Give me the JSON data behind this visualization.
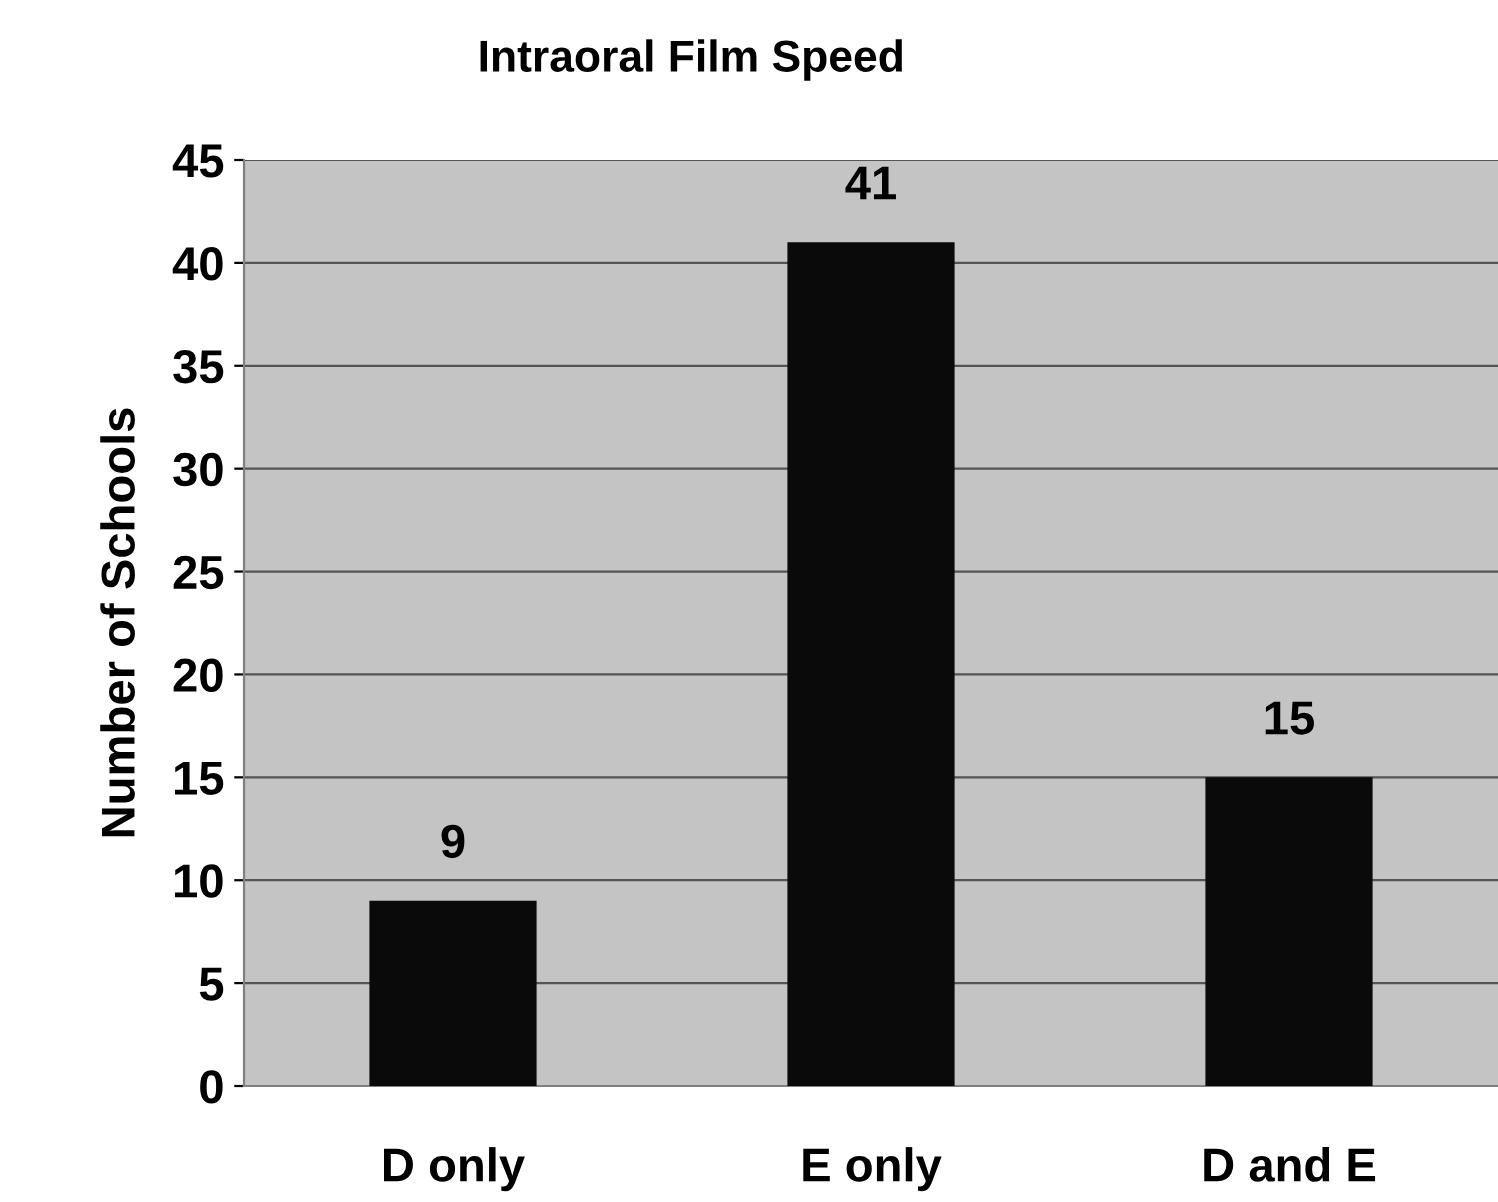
{
  "chart_data": {
    "type": "bar",
    "title": "Intraoral Film Speed",
    "ylabel": "Number of Schools",
    "categories": [
      "D only",
      "E only",
      "D and E"
    ],
    "values": [
      9,
      41,
      15
    ],
    "color": "#0a0a0a",
    "ylim": [
      0,
      45
    ],
    "yticks": [
      0,
      5,
      10,
      15,
      20,
      25,
      30,
      35,
      40,
      45
    ],
    "grid": "y",
    "data_labels": true
  }
}
